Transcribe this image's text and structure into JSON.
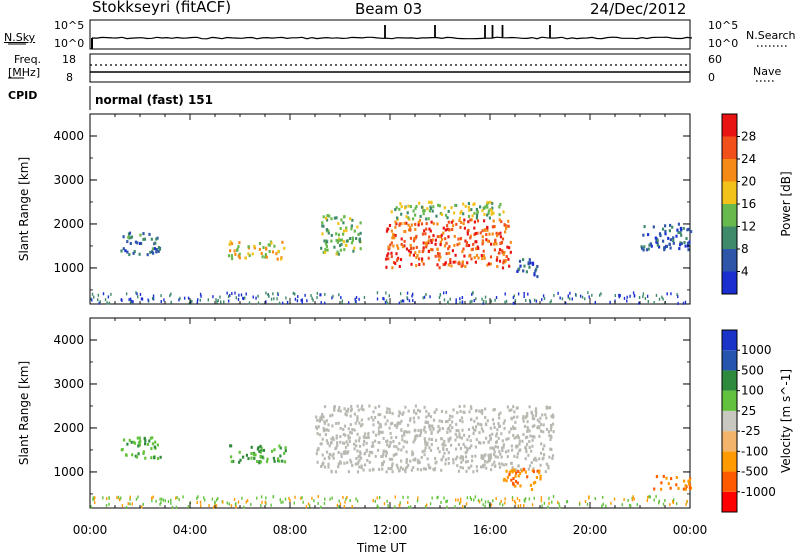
{
  "header": {
    "station": "Stokkseyri (fitACF)",
    "beam": "Beam 03",
    "date": "24/Dec/2012"
  },
  "top_panels": {
    "nsky_label": "N.Sky",
    "nsky_tick_high": "10^5",
    "nsky_tick_low": "10^0",
    "nsearch_label": "N.Search",
    "nsearch_tick_high": "10^5",
    "nsearch_tick_low": "10^0",
    "freq_label_1": "Freq.",
    "freq_label_2": "[MHz]",
    "freq_tick_high": "18",
    "freq_tick_low": "8",
    "nave_label": "Nave",
    "nave_tick_high": "60",
    "nave_tick_low": "0",
    "cpid_label": "CPID",
    "cpid_value": "normal (fast) 151"
  },
  "colors": {
    "power_scale": [
      "#1b2fd0",
      "#2e55a8",
      "#3f8a6a",
      "#67b84d",
      "#f2c21b",
      "#f58a14",
      "#f2501a",
      "#e81313"
    ],
    "velocity_scale": [
      "#ff0000",
      "#ff5a00",
      "#ff9a00",
      "#f2b46a",
      "#c8c8c0",
      "#62c23d",
      "#2e8a3d",
      "#2655b0",
      "#1a34c8"
    ],
    "ground_scatter": "#b9b9b2"
  },
  "chart_data": [
    {
      "type": "heatmap",
      "title": "Power",
      "ylabel": "Slant Range [km]",
      "xlabel": "Time UT",
      "x_ticks": [
        "00:00",
        "04:00",
        "08:00",
        "12:00",
        "16:00",
        "20:00",
        "00:00"
      ],
      "y_ticks": [
        "1000",
        "2000",
        "3000",
        "4000"
      ],
      "ylim": [
        180,
        4500
      ],
      "colorbar_label": "Power [dB]",
      "colorbar_ticks": [
        "4",
        "8",
        "12",
        "16",
        "20",
        "24",
        "28"
      ],
      "regions": [
        {
          "t0": 1.2,
          "t1": 2.8,
          "r0": 1300,
          "r1": 1800,
          "v": 8
        },
        {
          "t0": 5.5,
          "t1": 7.8,
          "r0": 1200,
          "r1": 1600,
          "v": 18
        },
        {
          "t0": 9.2,
          "t1": 10.8,
          "r0": 1300,
          "r1": 2200,
          "v": 14
        },
        {
          "t0": 11.8,
          "t1": 16.8,
          "r0": 1000,
          "r1": 2100,
          "v": 26
        },
        {
          "t0": 12.0,
          "t1": 16.5,
          "r0": 2100,
          "r1": 2500,
          "v": 15
        },
        {
          "t0": 17.0,
          "t1": 18.0,
          "r0": 800,
          "r1": 1200,
          "v": 6
        },
        {
          "t0": 22.0,
          "t1": 24.0,
          "r0": 1400,
          "r1": 2000,
          "v": 6
        }
      ]
    },
    {
      "type": "heatmap",
      "title": "Velocity",
      "ylabel": "Slant Range [km]",
      "xlabel": "Time UT",
      "x_ticks": [
        "00:00",
        "04:00",
        "08:00",
        "12:00",
        "16:00",
        "20:00",
        "00:00"
      ],
      "y_ticks": [
        "1000",
        "2000",
        "3000",
        "4000"
      ],
      "ylim": [
        180,
        4500
      ],
      "colorbar_label": "Velocity [m s^-1]",
      "colorbar_ticks": [
        "1000",
        "500",
        "100",
        "25",
        "-25",
        "-100",
        "-500",
        "-1000"
      ],
      "regions": [
        {
          "t0": 1.2,
          "t1": 2.8,
          "r0": 1300,
          "r1": 1800,
          "v": 50
        },
        {
          "t0": 5.5,
          "t1": 7.8,
          "r0": 1200,
          "r1": 1600,
          "v": 60
        },
        {
          "t0": 9.0,
          "t1": 18.5,
          "r0": 1000,
          "r1": 2500,
          "v": 0
        },
        {
          "t0": 16.5,
          "t1": 18.0,
          "r0": 600,
          "r1": 1100,
          "v": -300
        },
        {
          "t0": 22.5,
          "t1": 24.0,
          "r0": 600,
          "r1": 900,
          "v": -300
        }
      ]
    }
  ],
  "xaxis_title": "Time UT"
}
